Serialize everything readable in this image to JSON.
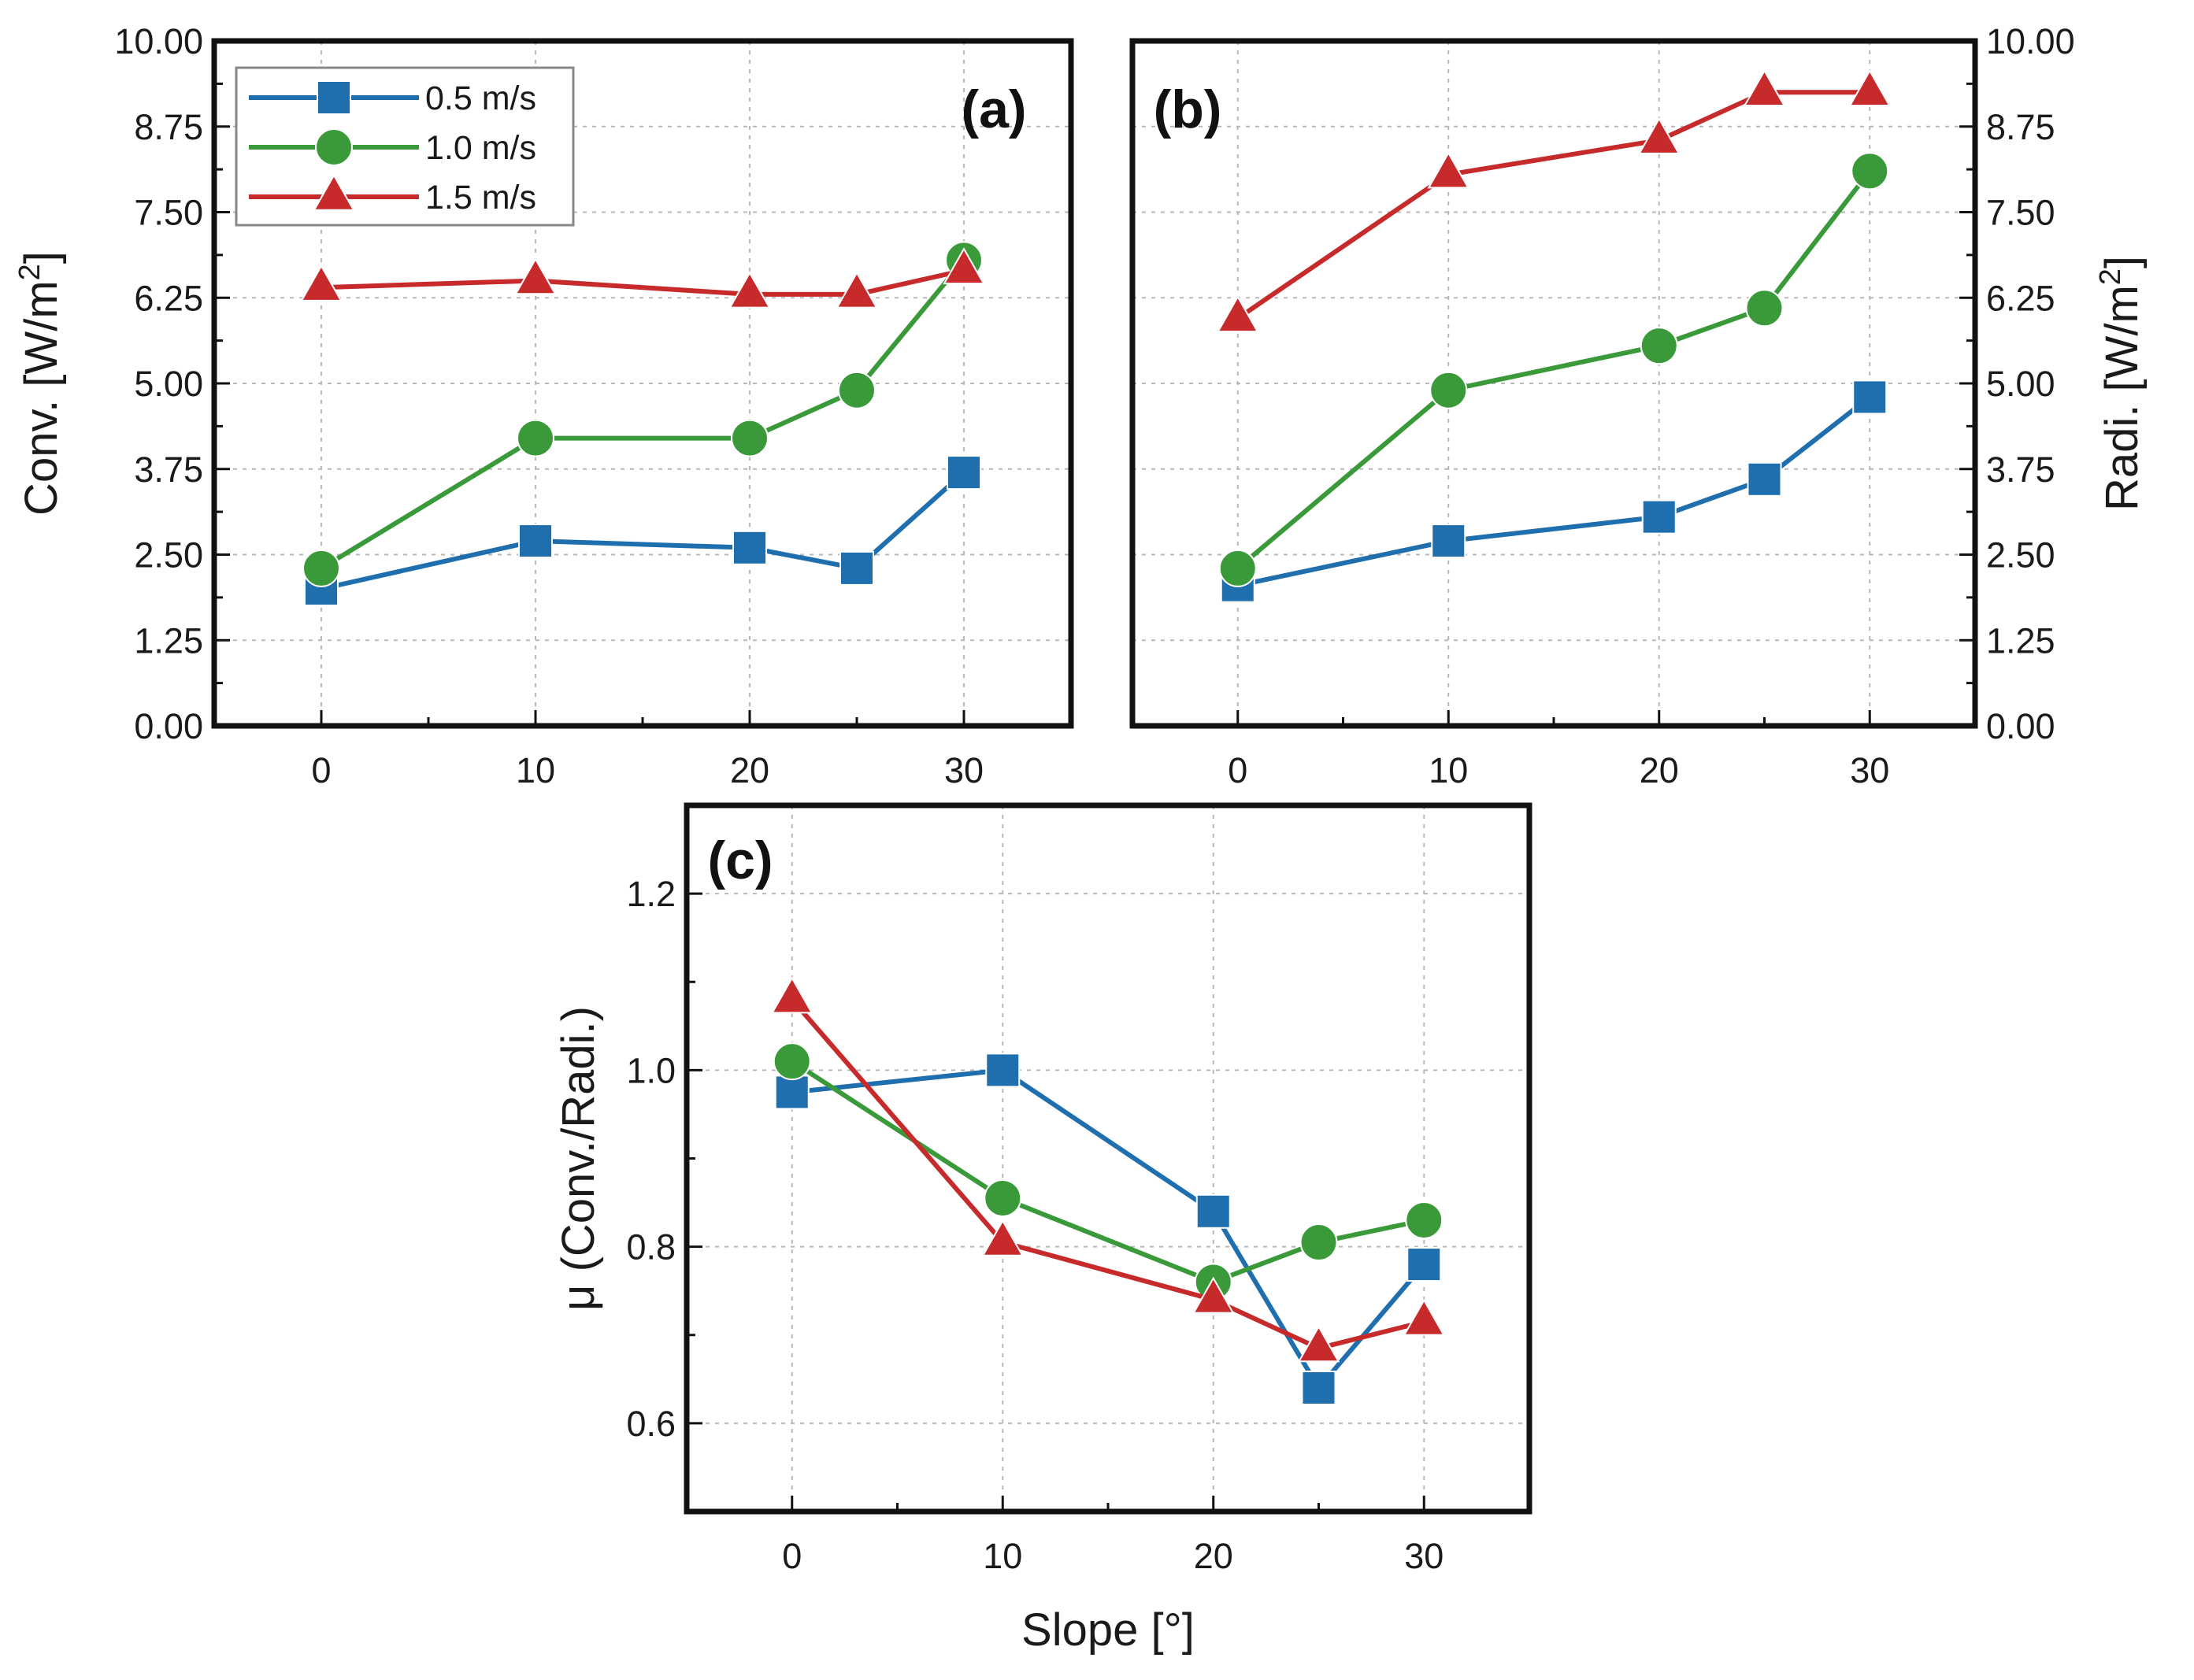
{
  "chart_data": [
    {
      "id": "a",
      "type": "line",
      "panel_label": "(a)",
      "ylabel": "Conv. [W/m",
      "ylabel_superscript": "2",
      "ylabel_suffix": "]",
      "xlabel": "",
      "ylim": [
        0,
        10
      ],
      "xlim": [
        -5,
        35
      ],
      "xticks": [
        "0",
        "10",
        "20",
        "30"
      ],
      "yticks": [
        "0.00",
        "1.25",
        "2.50",
        "3.75",
        "5.00",
        "6.25",
        "7.50",
        "8.75",
        "10.00"
      ],
      "x": [
        0,
        10,
        20,
        25,
        30
      ],
      "legend": "top-left",
      "series": [
        {
          "name": "0.5 m/s",
          "values": [
            2.0,
            2.7,
            2.6,
            2.3,
            3.7
          ],
          "color": "#1f6faf",
          "marker": "square"
        },
        {
          "name": "1.0 m/s",
          "values": [
            2.3,
            4.2,
            4.2,
            4.9,
            6.8
          ],
          "color": "#3a9a3a",
          "marker": "circle"
        },
        {
          "name": "1.5 m/s",
          "values": [
            6.4,
            6.5,
            6.3,
            6.3,
            6.65
          ],
          "color": "#c72a2a",
          "marker": "triangle"
        }
      ]
    },
    {
      "id": "b",
      "type": "line",
      "panel_label": "(b)",
      "ylabel": "Radi. [W/m",
      "ylabel_superscript": "2",
      "ylabel_suffix": "]",
      "xlabel": "",
      "ylim": [
        0,
        10
      ],
      "xlim": [
        -5,
        35
      ],
      "xticks": [
        "0",
        "10",
        "20",
        "30"
      ],
      "yticks": [
        "0.00",
        "1.25",
        "2.50",
        "3.75",
        "5.00",
        "6.25",
        "7.50",
        "8.75",
        "10.00"
      ],
      "x": [
        0,
        10,
        20,
        25,
        30
      ],
      "series": [
        {
          "name": "0.5 m/s",
          "values": [
            2.05,
            2.7,
            3.05,
            3.6,
            4.8
          ],
          "color": "#1f6faf",
          "marker": "square"
        },
        {
          "name": "1.0 m/s",
          "values": [
            2.3,
            4.9,
            5.55,
            6.1,
            8.1
          ],
          "color": "#3a9a3a",
          "marker": "circle"
        },
        {
          "name": "1.5 m/s",
          "values": [
            5.95,
            8.05,
            8.55,
            9.25,
            9.25
          ],
          "color": "#c72a2a",
          "marker": "triangle"
        }
      ]
    },
    {
      "id": "c",
      "type": "line",
      "panel_label": "(c)",
      "ylabel": "μ (Conv./Radi.)",
      "xlabel": "Slope [°]",
      "ylim": [
        0.5,
        1.3
      ],
      "xlim": [
        -5,
        35
      ],
      "xticks": [
        "0",
        "10",
        "20",
        "30"
      ],
      "yticks": [
        "0.6",
        "0.8",
        "1.0",
        "1.2"
      ],
      "x": [
        0,
        10,
        20,
        25,
        30
      ],
      "series": [
        {
          "name": "0.5 m/s",
          "values": [
            0.975,
            1.0,
            0.84,
            0.64,
            0.78
          ],
          "color": "#1f6faf",
          "marker": "square"
        },
        {
          "name": "1.0 m/s",
          "values": [
            1.01,
            0.855,
            0.76,
            0.805,
            0.83
          ],
          "color": "#3a9a3a",
          "marker": "circle"
        },
        {
          "name": "1.5 m/s",
          "values": [
            1.08,
            0.805,
            0.74,
            0.685,
            0.715
          ],
          "color": "#c72a2a",
          "marker": "triangle"
        }
      ]
    }
  ]
}
